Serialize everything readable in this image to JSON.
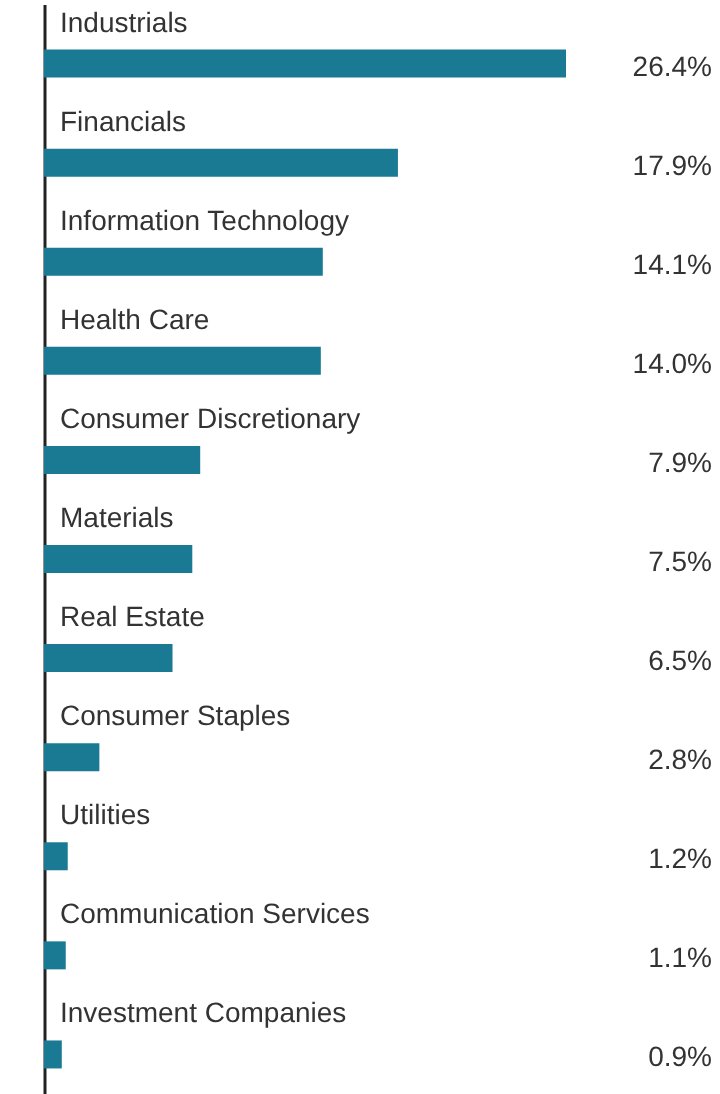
{
  "chart_data": {
    "type": "bar",
    "orientation": "horizontal",
    "categories": [
      "Industrials",
      "Financials",
      "Information Technology",
      "Health Care",
      "Consumer Discretionary",
      "Materials",
      "Real Estate",
      "Consumer Staples",
      "Utilities",
      "Communication Services",
      "Investment Companies"
    ],
    "values": [
      26.4,
      17.9,
      14.1,
      14.0,
      7.9,
      7.5,
      6.5,
      2.8,
      1.2,
      1.1,
      0.9
    ],
    "value_labels": [
      "26.4%",
      "17.9%",
      "14.1%",
      "14.0%",
      "7.9%",
      "7.5%",
      "6.5%",
      "2.8%",
      "1.2%",
      "1.1%",
      "0.9%"
    ],
    "color": "#1a7a94"
  }
}
